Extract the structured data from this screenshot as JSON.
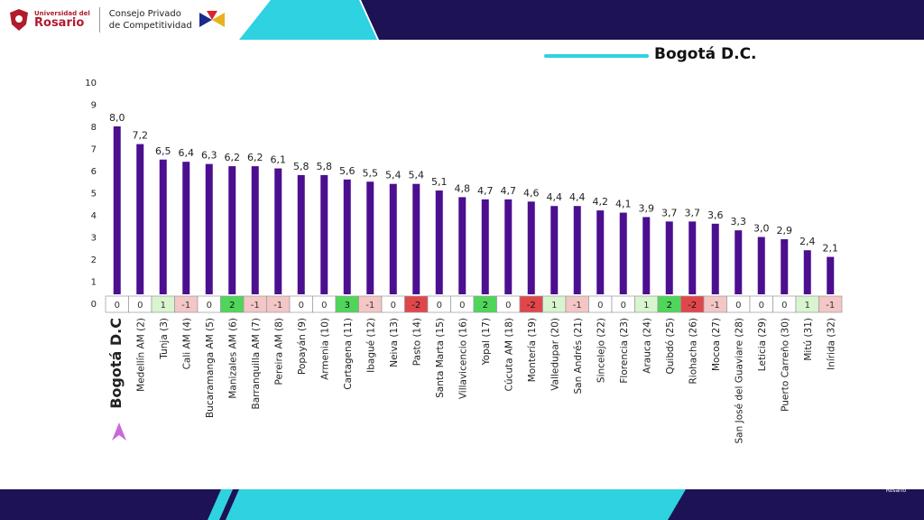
{
  "header": {
    "university_small": "Universidad del",
    "university_big": "Rosario",
    "council_line1": "Consejo Privado",
    "council_line2": "de Competitividad"
  },
  "footer": {
    "logo_text": "Rosario"
  },
  "colors": {
    "bar": "#4b0f8f",
    "dark_band": "#1c1254",
    "cyan": "#2fd2e0",
    "positive_light": "#d8f5d0",
    "positive_strong": "#4fd65a",
    "negative_light": "#f4c6c6",
    "negative_strong": "#e0474b"
  },
  "chart_data": {
    "type": "bar",
    "title": "Bogotá D.C.",
    "categories": [
      "Bogotá D.C",
      "Medellín AM (2)",
      "Tunja (3)",
      "Cali AM (4)",
      "Bucaramanga AM (5)",
      "Manizales AM (6)",
      "Barranquilla AM (7)",
      "Pereira AM (8)",
      "Popayán (9)",
      "Armenia (10)",
      "Cartagena (11)",
      "Ibagué (12)",
      "Neiva (13)",
      "Pasto (14)",
      "Santa Marta (15)",
      "Villavicencio (16)",
      "Yopal (17)",
      "Cúcuta AM (18)",
      "Montería (19)",
      "Valledupar (20)",
      "San Andrés (21)",
      "Sincelejo (22)",
      "Florencia (23)",
      "Arauca (24)",
      "Quibdó (25)",
      "Riohacha (26)",
      "Mocoa (27)",
      "San José del Guaviare (28)",
      "Leticia (29)",
      "Puerto Carreño (30)",
      "Mitú (31)",
      "Inírida (32)"
    ],
    "values": [
      8.0,
      7.2,
      6.5,
      6.4,
      6.3,
      6.2,
      6.2,
      6.1,
      5.8,
      5.8,
      5.6,
      5.5,
      5.4,
      5.4,
      5.1,
      4.8,
      4.7,
      4.7,
      4.6,
      4.4,
      4.4,
      4.2,
      4.1,
      3.9,
      3.7,
      3.7,
      3.6,
      3.3,
      3.0,
      2.9,
      2.4,
      2.1
    ],
    "value_labels": [
      "8,0",
      "7,2",
      "6,5",
      "6,4",
      "6,3",
      "6,2",
      "6,2",
      "6,1",
      "5,8",
      "5,8",
      "5,6",
      "5,5",
      "5,4",
      "5,4",
      "5,1",
      "4,8",
      "4,7",
      "4,7",
      "4,6",
      "4,4",
      "4,4",
      "4,2",
      "4,1",
      "3,9",
      "3,7",
      "3,7",
      "3,6",
      "3,3",
      "3,0",
      "2,9",
      "2,4",
      "2,1"
    ],
    "rank_change": [
      0,
      0,
      1,
      -1,
      0,
      2,
      -1,
      -1,
      0,
      0,
      3,
      -1,
      0,
      -2,
      0,
      0,
      2,
      0,
      -2,
      1,
      -1,
      0,
      0,
      1,
      2,
      -2,
      -1,
      0,
      0,
      0,
      1,
      -1
    ],
    "yticks": [
      "0",
      "1",
      "2",
      "3",
      "4",
      "5",
      "6",
      "7",
      "8",
      "9",
      "10"
    ],
    "ylim": [
      0,
      10
    ],
    "grid": false,
    "legend": "none"
  }
}
